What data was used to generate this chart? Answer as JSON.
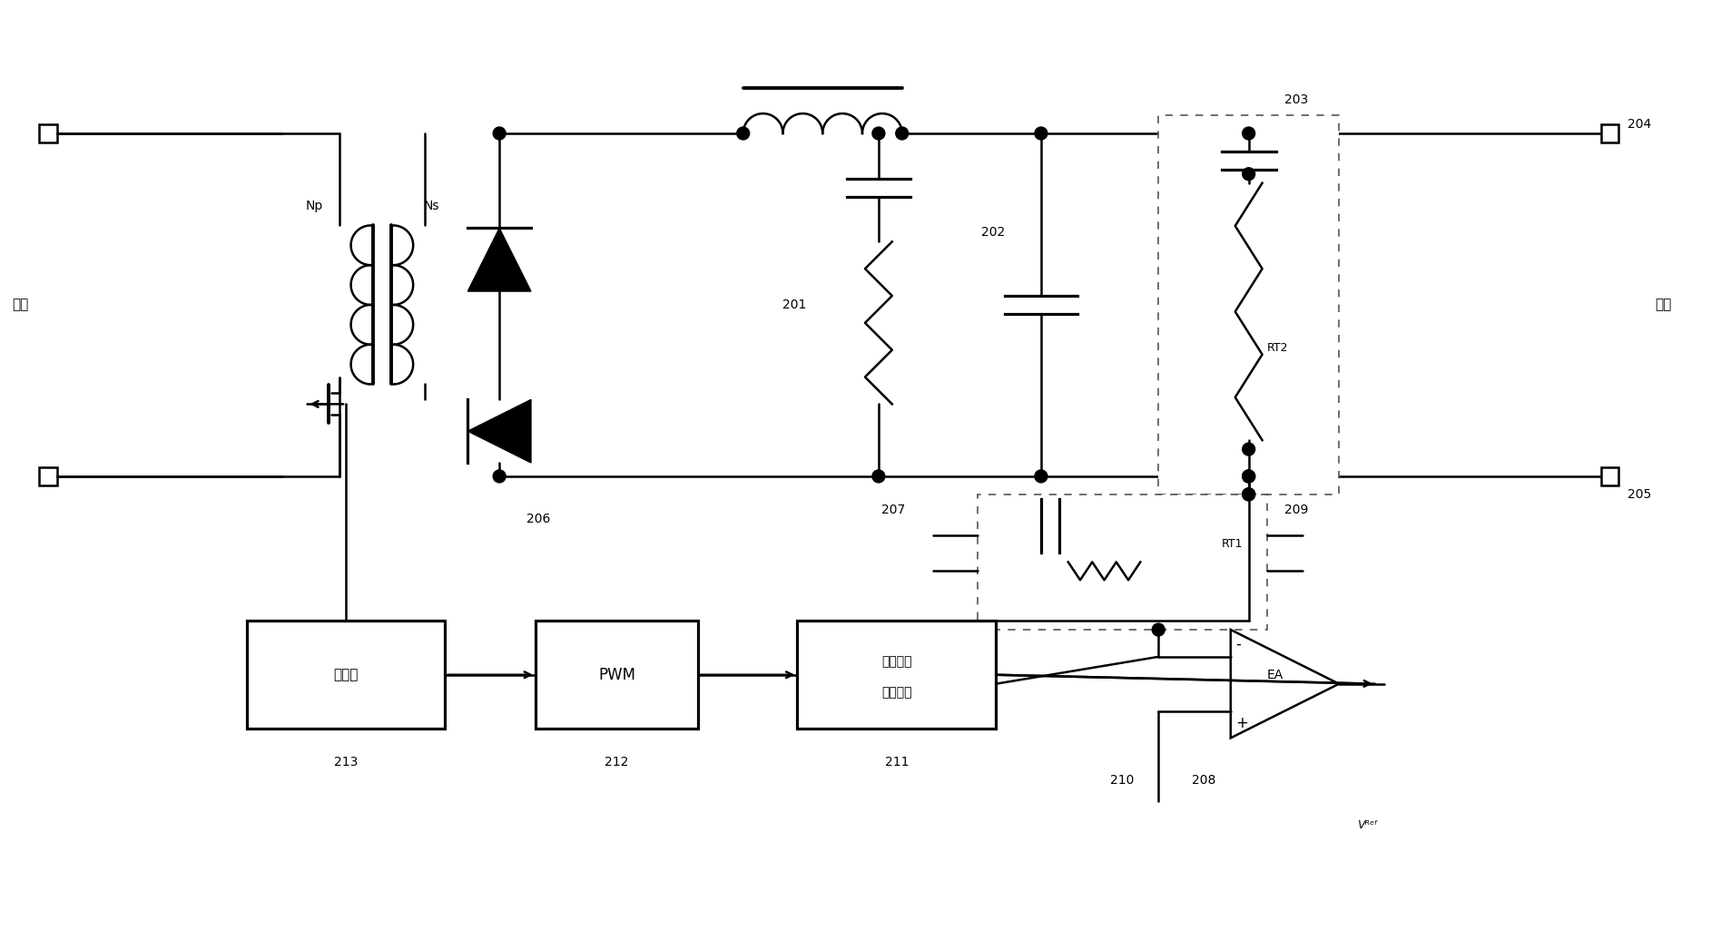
{
  "bg_color": "#ffffff",
  "line_color": "#000000",
  "lw": 1.8,
  "fig_width": 18.96,
  "fig_height": 10.25,
  "labels": {
    "input": "输入",
    "output": "输出",
    "Np": "Np",
    "Ns": "Ns",
    "RT2": "RT2",
    "RT1": "RT1",
    "EA": "EA",
    "PWM": "PWM",
    "driver": "驱动器",
    "iso_line1": "隔离传输",
    "iso_line2": "（放大）",
    "Vref": "Vᴿᵉᶠ",
    "n201": "201",
    "n202": "202",
    "n203": "203",
    "n204": "204",
    "n205": "205",
    "n206": "206",
    "n207": "207",
    "n208": "208",
    "n209": "209",
    "n210": "210",
    "n211": "211",
    "n212": "212",
    "n213": "213"
  }
}
